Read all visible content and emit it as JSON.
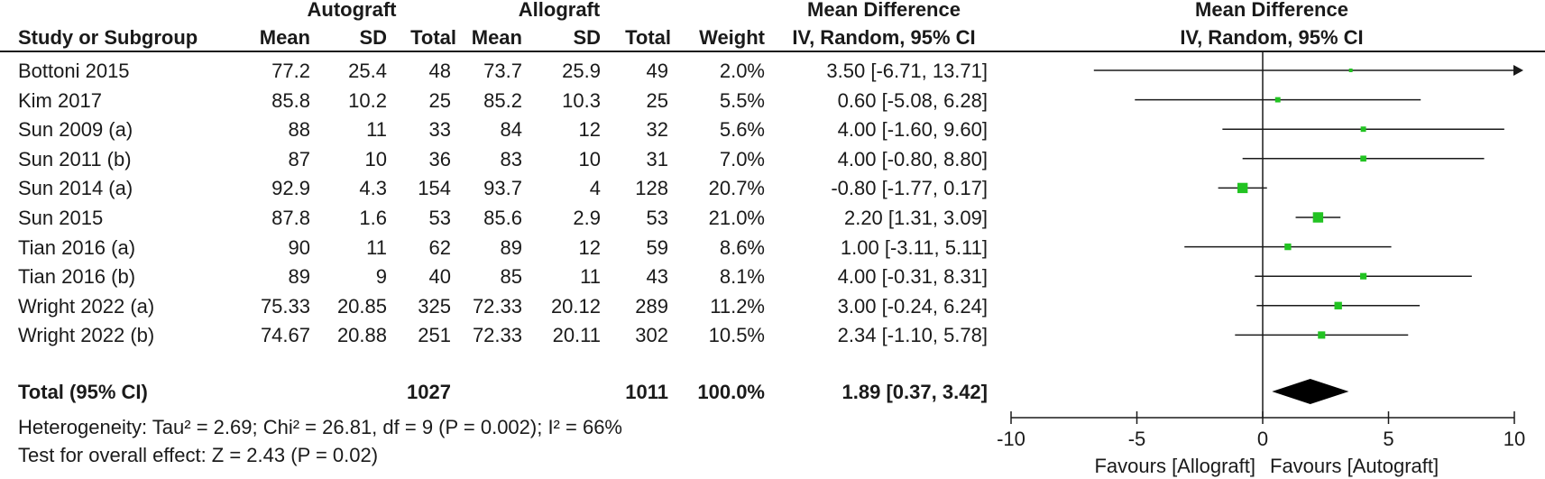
{
  "header": {
    "group1": "Autograft",
    "group2": "Allograft",
    "md_title": "Mean Difference",
    "md_method": "IV, Random, 95% CI",
    "plot_title": "Mean Difference",
    "plot_method": "IV, Random, 95% CI",
    "col_study": "Study or Subgroup",
    "col_mean1": "Mean",
    "col_sd1": "SD",
    "col_total1": "Total",
    "col_mean2": "Mean",
    "col_sd2": "SD",
    "col_total2": "Total",
    "col_weight": "Weight"
  },
  "rows": [
    {
      "study": "Bottoni 2015",
      "m1": "77.2",
      "sd1": "25.4",
      "n1": "48",
      "m2": "73.7",
      "sd2": "25.9",
      "n2": "49",
      "weight": "2.0%",
      "ci": "3.50 [-6.71, 13.71]"
    },
    {
      "study": "Kim 2017",
      "m1": "85.8",
      "sd1": "10.2",
      "n1": "25",
      "m2": "85.2",
      "sd2": "10.3",
      "n2": "25",
      "weight": "5.5%",
      "ci": "0.60 [-5.08, 6.28]"
    },
    {
      "study": "Sun 2009 (a)",
      "m1": "88",
      "sd1": "11",
      "n1": "33",
      "m2": "84",
      "sd2": "12",
      "n2": "32",
      "weight": "5.6%",
      "ci": "4.00 [-1.60, 9.60]"
    },
    {
      "study": "Sun 2011 (b)",
      "m1": "87",
      "sd1": "10",
      "n1": "36",
      "m2": "83",
      "sd2": "10",
      "n2": "31",
      "weight": "7.0%",
      "ci": "4.00 [-0.80, 8.80]"
    },
    {
      "study": "Sun 2014 (a)",
      "m1": "92.9",
      "sd1": "4.3",
      "n1": "154",
      "m2": "93.7",
      "sd2": "4",
      "n2": "128",
      "weight": "20.7%",
      "ci": "-0.80 [-1.77, 0.17]"
    },
    {
      "study": "Sun 2015",
      "m1": "87.8",
      "sd1": "1.6",
      "n1": "53",
      "m2": "85.6",
      "sd2": "2.9",
      "n2": "53",
      "weight": "21.0%",
      "ci": "2.20 [1.31, 3.09]"
    },
    {
      "study": "Tian 2016 (a)",
      "m1": "90",
      "sd1": "11",
      "n1": "62",
      "m2": "89",
      "sd2": "12",
      "n2": "59",
      "weight": "8.6%",
      "ci": "1.00 [-3.11, 5.11]"
    },
    {
      "study": "Tian 2016 (b)",
      "m1": "89",
      "sd1": "9",
      "n1": "40",
      "m2": "85",
      "sd2": "11",
      "n2": "43",
      "weight": "8.1%",
      "ci": "4.00 [-0.31, 8.31]"
    },
    {
      "study": "Wright 2022 (a)",
      "m1": "75.33",
      "sd1": "20.85",
      "n1": "325",
      "m2": "72.33",
      "sd2": "20.12",
      "n2": "289",
      "weight": "11.2%",
      "ci": "3.00 [-0.24, 6.24]"
    },
    {
      "study": "Wright 2022 (b)",
      "m1": "74.67",
      "sd1": "20.88",
      "n1": "251",
      "m2": "72.33",
      "sd2": "20.11",
      "n2": "302",
      "weight": "10.5%",
      "ci": "2.34 [-1.10, 5.78]"
    }
  ],
  "total": {
    "label": "Total (95% CI)",
    "n1": "1027",
    "n2": "1011",
    "weight": "100.0%",
    "ci": "1.89 [0.37, 3.42]"
  },
  "heterogeneity": "Heterogeneity: Tau² = 2.69; Chi² = 26.81, df = 9 (P = 0.002); I² = 66%",
  "overall_effect": "Test for overall effect: Z = 2.43 (P = 0.02)",
  "colors": {
    "marker": "#22c322",
    "line": "#1a1a1a",
    "diamond": "#000000"
  },
  "chart_data": {
    "type": "forest",
    "xlim": [
      -10,
      10
    ],
    "xticks": [
      -10,
      -5,
      0,
      5,
      10
    ],
    "favours_left": "Favours [Allograft]",
    "favours_right": "Favours [Autograft]",
    "studies": [
      {
        "study": "Bottoni 2015",
        "md": 3.5,
        "lo": -6.71,
        "hi": 13.71,
        "weight": 2.0
      },
      {
        "study": "Kim 2017",
        "md": 0.6,
        "lo": -5.08,
        "hi": 6.28,
        "weight": 5.5
      },
      {
        "study": "Sun 2009 (a)",
        "md": 4.0,
        "lo": -1.6,
        "hi": 9.6,
        "weight": 5.6
      },
      {
        "study": "Sun 2011 (b)",
        "md": 4.0,
        "lo": -0.8,
        "hi": 8.8,
        "weight": 7.0
      },
      {
        "study": "Sun 2014 (a)",
        "md": -0.8,
        "lo": -1.77,
        "hi": 0.17,
        "weight": 20.7
      },
      {
        "study": "Sun 2015",
        "md": 2.2,
        "lo": 1.31,
        "hi": 3.09,
        "weight": 21.0
      },
      {
        "study": "Tian 2016 (a)",
        "md": 1.0,
        "lo": -3.11,
        "hi": 5.11,
        "weight": 8.6
      },
      {
        "study": "Tian 2016 (b)",
        "md": 4.0,
        "lo": -0.31,
        "hi": 8.31,
        "weight": 8.1
      },
      {
        "study": "Wright 2022 (a)",
        "md": 3.0,
        "lo": -0.24,
        "hi": 6.24,
        "weight": 11.2
      },
      {
        "study": "Wright 2022 (b)",
        "md": 2.34,
        "lo": -1.1,
        "hi": 5.78,
        "weight": 10.5
      }
    ],
    "pooled": {
      "md": 1.89,
      "lo": 0.37,
      "hi": 3.42
    }
  }
}
